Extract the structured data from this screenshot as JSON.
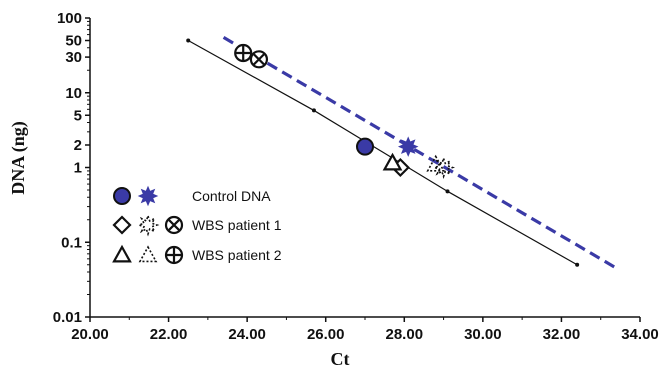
{
  "chart_data": {
    "type": "scatter",
    "xlabel": "Ct",
    "ylabel": "DNA (ng)",
    "xlim": [
      20,
      34
    ],
    "ylim": [
      0.01,
      100
    ],
    "yscale": "log",
    "x_ticks": [
      "20.00",
      "22.00",
      "24.00",
      "26.00",
      "28.00",
      "30.00",
      "32.00",
      "34.00"
    ],
    "y_ticks": [
      {
        "value": 100,
        "label": "100"
      },
      {
        "value": 50,
        "label": "50"
      },
      {
        "value": 30,
        "label": "30"
      },
      {
        "value": 10,
        "label": "10"
      },
      {
        "value": 5,
        "label": "5"
      },
      {
        "value": 2,
        "label": "2"
      },
      {
        "value": 1,
        "label": "1"
      },
      {
        "value": 0.1,
        "label": "0.1"
      },
      {
        "value": 0.01,
        "label": "0.01"
      }
    ],
    "standard_line": {
      "color": "#111111",
      "points": [
        {
          "x": 22.5,
          "y": 50
        },
        {
          "x": 25.7,
          "y": 5.8
        },
        {
          "x": 29.1,
          "y": 0.48
        },
        {
          "x": 32.4,
          "y": 0.05
        }
      ]
    },
    "dashed_line": {
      "color": "#3a3aa6",
      "points": [
        {
          "x": 23.4,
          "y": 55
        },
        {
          "x": 33.4,
          "y": 0.045
        }
      ]
    },
    "series": [
      {
        "name": "Control DNA",
        "marker": "filled-circle",
        "color": "#3a3aa6",
        "points": [
          {
            "x": 27.0,
            "y": 1.9
          }
        ]
      },
      {
        "name": "Control DNA",
        "marker": "filled-star",
        "color": "#3a3aa6",
        "points": [
          {
            "x": 28.1,
            "y": 1.9
          }
        ]
      },
      {
        "name": "WBS patient 1",
        "marker": "diamond",
        "color": "#111111",
        "points": [
          {
            "x": 27.9,
            "y": 1.0
          }
        ]
      },
      {
        "name": "WBS patient 1",
        "marker": "dotted-star",
        "color": "#111111",
        "points": [
          {
            "x": 29.0,
            "y": 1.0
          }
        ]
      },
      {
        "name": "WBS patient 1",
        "marker": "circle-x",
        "color": "#111111",
        "points": [
          {
            "x": 24.3,
            "y": 28
          }
        ]
      },
      {
        "name": "WBS patient 2",
        "marker": "triangle",
        "color": "#111111",
        "points": [
          {
            "x": 27.7,
            "y": 1.15
          }
        ]
      },
      {
        "name": "WBS patient 2",
        "marker": "dotted-triangle",
        "color": "#111111",
        "points": [
          {
            "x": 28.8,
            "y": 1.1
          }
        ]
      },
      {
        "name": "WBS patient 2",
        "marker": "circle-plus",
        "color": "#111111",
        "points": [
          {
            "x": 23.9,
            "y": 34
          }
        ]
      }
    ],
    "legend": {
      "placement": "left",
      "entries": [
        {
          "label": "Control DNA",
          "markers": [
            "filled-circle",
            "filled-star"
          ]
        },
        {
          "label": "WBS patient 1",
          "markers": [
            "diamond",
            "dotted-star",
            "circle-x"
          ]
        },
        {
          "label": "WBS patient 2",
          "markers": [
            "triangle",
            "dotted-triangle",
            "circle-plus"
          ]
        }
      ]
    },
    "grid": false
  }
}
